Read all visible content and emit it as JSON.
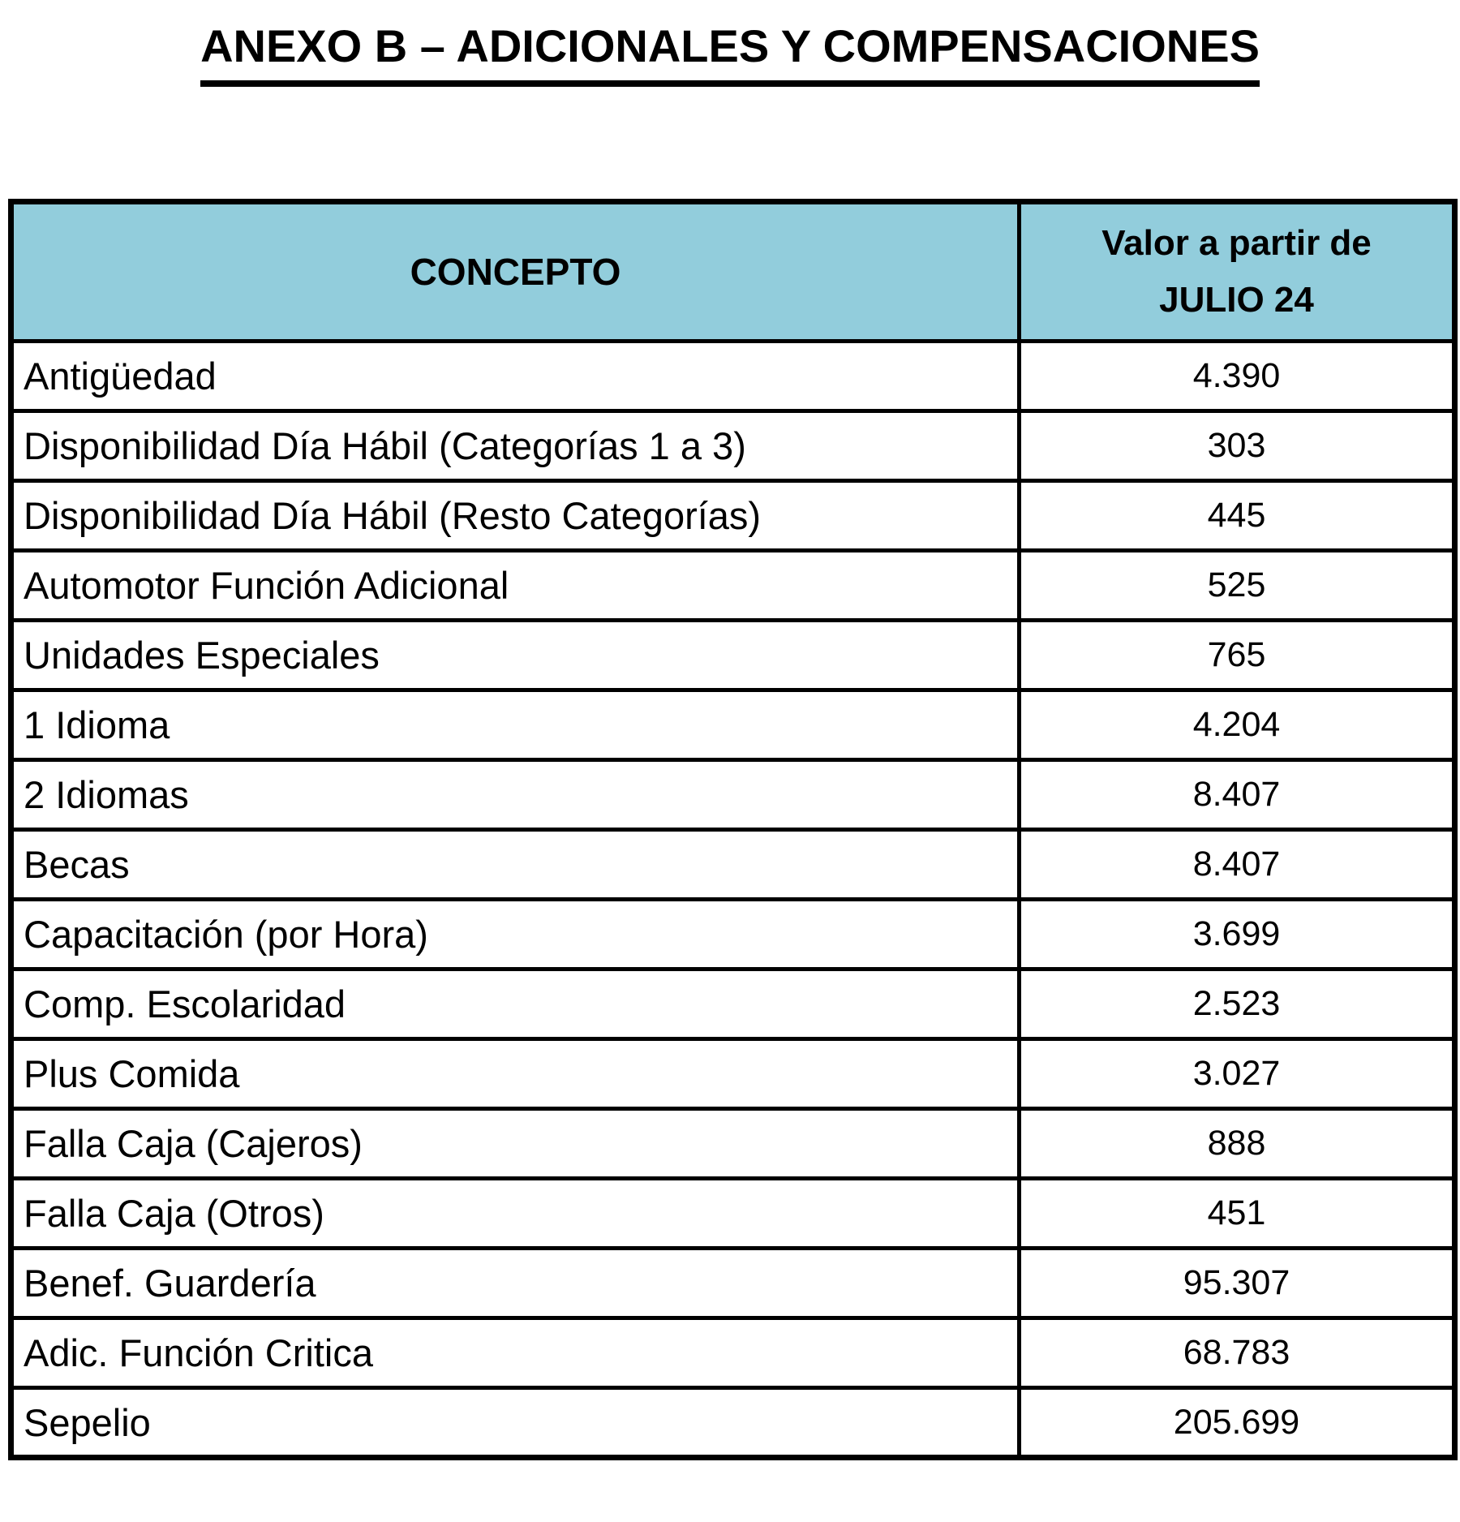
{
  "title": "ANEXO B – ADICIONALES Y COMPENSACIONES",
  "colors": {
    "header_bg": "#92CDDC",
    "border": "#000000",
    "text": "#000000",
    "page_bg": "#FFFFFF"
  },
  "table": {
    "headers": {
      "concept": "CONCEPTO",
      "value_line1": "Valor a partir de",
      "value_line2": "JULIO 24"
    },
    "rows": [
      {
        "concept": "Antigüedad",
        "value": "4.390"
      },
      {
        "concept": "Disponibilidad Día Hábil (Categorías 1 a 3)",
        "value": "303"
      },
      {
        "concept": "Disponibilidad Día Hábil (Resto Categorías)",
        "value": "445"
      },
      {
        "concept": "Automotor Función Adicional",
        "value": "525"
      },
      {
        "concept": "Unidades Especiales",
        "value": "765"
      },
      {
        "concept": "1 Idioma",
        "value": "4.204"
      },
      {
        "concept": "2 Idiomas",
        "value": "8.407"
      },
      {
        "concept": "Becas",
        "value": "8.407"
      },
      {
        "concept": "Capacitación (por Hora)",
        "value": "3.699"
      },
      {
        "concept": "Comp. Escolaridad",
        "value": "2.523"
      },
      {
        "concept": "Plus Comida",
        "value": "3.027"
      },
      {
        "concept": "Falla Caja (Cajeros)",
        "value": "888"
      },
      {
        "concept": "Falla Caja (Otros)",
        "value": "451"
      },
      {
        "concept": "Benef. Guardería",
        "value": "95.307"
      },
      {
        "concept": "Adic. Función Critica",
        "value": "68.783"
      },
      {
        "concept": "Sepelio",
        "value": "205.699"
      }
    ]
  }
}
